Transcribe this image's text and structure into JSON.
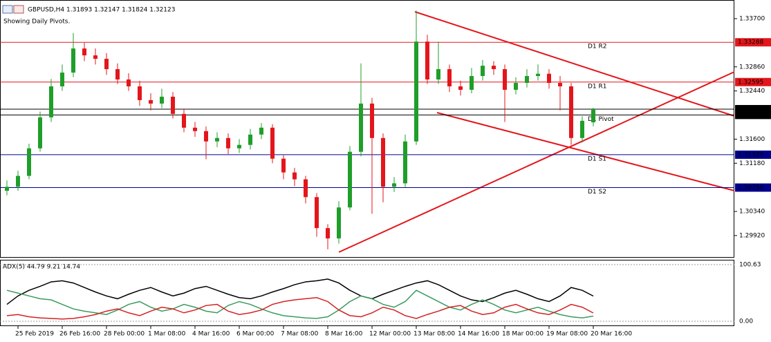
{
  "chart_data": [
    {
      "type": "candlestick",
      "title": "GBPUSD,H4  1.31893 1.32147 1.31824 1.32123",
      "subtitle": "Showing Daily Pivots.",
      "categories": [
        null,
        "25 Feb 2019",
        null,
        null,
        null,
        "26 Feb 16:00",
        null,
        null,
        null,
        "28 Feb 00:00",
        null,
        null,
        null,
        "1 Mar 08:00",
        null,
        null,
        null,
        "4 Mar 16:00",
        null,
        null,
        null,
        "6 Mar 00:00",
        null,
        null,
        null,
        "7 Mar 08:00",
        null,
        null,
        null,
        "8 Mar 16:00",
        null,
        null,
        null,
        "12 Mar 00:00",
        null,
        null,
        null,
        "13 Mar 08:00",
        null,
        null,
        null,
        "14 Mar 16:00",
        null,
        null,
        null,
        "18 Mar 00:00",
        null,
        null,
        null,
        "19 Mar 08:00",
        null,
        null,
        null,
        "20 Mar 16:00"
      ],
      "open": [
        1.307,
        1.3077,
        1.3096,
        1.3144,
        1.3198,
        1.3252,
        1.3276,
        1.3318,
        1.3306,
        1.33,
        1.3282,
        1.3264,
        1.3252,
        1.3228,
        1.3222,
        1.3234,
        1.3204,
        1.318,
        1.3174,
        1.3156,
        1.3162,
        1.3144,
        1.315,
        1.3168,
        1.318,
        1.3126,
        1.3102,
        1.309,
        1.3059,
        1.3005,
        1.2987,
        1.3041,
        1.3138,
        1.3222,
        1.3162,
        1.3077,
        1.3083,
        1.3156,
        1.333,
        1.3264,
        1.3282,
        1.3252,
        1.3246,
        1.327,
        1.3288,
        1.3282,
        1.3246,
        1.3258,
        1.327,
        1.3274,
        1.3258,
        1.3252,
        1.3162,
        1.31893
      ],
      "high": [
        1.3088,
        1.3105,
        1.3152,
        1.3208,
        1.3265,
        1.329,
        1.3345,
        1.3328,
        1.3318,
        1.331,
        1.3292,
        1.3275,
        1.3262,
        1.324,
        1.3248,
        1.3242,
        1.3212,
        1.319,
        1.3182,
        1.3172,
        1.317,
        1.316,
        1.3178,
        1.3188,
        1.3186,
        1.3132,
        1.311,
        1.3096,
        1.3066,
        1.3012,
        1.3052,
        1.3148,
        1.3292,
        1.3232,
        1.317,
        1.3094,
        1.3168,
        1.3384,
        1.3342,
        1.333,
        1.329,
        1.3262,
        1.3284,
        1.3298,
        1.3296,
        1.329,
        1.3268,
        1.3282,
        1.329,
        1.3282,
        1.327,
        1.3258,
        1.32,
        1.32147
      ],
      "low": [
        1.3062,
        1.307,
        1.309,
        1.3138,
        1.319,
        1.3244,
        1.3268,
        1.3296,
        1.329,
        1.3272,
        1.3256,
        1.3244,
        1.3218,
        1.321,
        1.3214,
        1.3196,
        1.3172,
        1.3164,
        1.3125,
        1.3146,
        1.3134,
        1.3136,
        1.3142,
        1.316,
        1.3118,
        1.309,
        1.3078,
        1.3048,
        1.299,
        1.2968,
        1.2978,
        1.3036,
        1.313,
        1.303,
        1.305,
        1.3068,
        1.3076,
        1.315,
        1.3256,
        1.3256,
        1.3242,
        1.3236,
        1.324,
        1.3262,
        1.3272,
        1.319,
        1.3238,
        1.325,
        1.3262,
        1.3248,
        1.321,
        1.315,
        1.3154,
        1.31824
      ],
      "close": [
        1.3077,
        1.3096,
        1.3144,
        1.3198,
        1.3252,
        1.3276,
        1.3318,
        1.3306,
        1.33,
        1.3282,
        1.3264,
        1.3252,
        1.3228,
        1.3222,
        1.3234,
        1.3204,
        1.318,
        1.3174,
        1.3156,
        1.3162,
        1.3144,
        1.315,
        1.3168,
        1.318,
        1.3126,
        1.3102,
        1.309,
        1.3059,
        1.3005,
        1.2987,
        1.3041,
        1.3138,
        1.3222,
        1.3162,
        1.3077,
        1.3083,
        1.3156,
        1.333,
        1.3264,
        1.3282,
        1.3252,
        1.3246,
        1.327,
        1.3288,
        1.3282,
        1.3246,
        1.3258,
        1.327,
        1.3274,
        1.3258,
        1.3252,
        1.3162,
        1.3192,
        1.32123
      ],
      "up_color": "#1f9e2a",
      "down_color": "#e3161b",
      "ylim": [
        1.29546,
        1.34025
      ],
      "yticks": [
        {
          "value": 1.337,
          "label": "1.33700"
        },
        {
          "value": 1.3286,
          "label": "1.32860"
        },
        {
          "value": 1.3244,
          "label": "1.32440"
        },
        {
          "value": 1.316,
          "label": "1.31600"
        },
        {
          "value": 1.3118,
          "label": "1.31180"
        },
        {
          "value": 1.3034,
          "label": "1.30340"
        },
        {
          "value": 1.2992,
          "label": "1.29920"
        }
      ],
      "levels": [
        {
          "name": "D1 R2",
          "value": 1.33288,
          "color": "#e3161b"
        },
        {
          "name": "D1 R1",
          "value": 1.32595,
          "color": "#e3161b"
        },
        {
          "name": "D1 Pivot",
          "value": 1.32022,
          "color": "#000000"
        },
        {
          "name": "D1 S1",
          "value": 1.31329,
          "color": "#00008b"
        },
        {
          "name": "D1 S2",
          "value": 1.30756,
          "color": "#00008b"
        }
      ],
      "current_price": 1.32123,
      "grid": false
    },
    {
      "type": "line",
      "title": "ADX(5) 44.79 9.21 14.74",
      "series": [
        {
          "color": "#000000",
          "values": [
            30,
            45,
            55,
            62,
            70,
            72,
            68,
            60,
            52,
            45,
            40,
            48,
            55,
            60,
            52,
            45,
            50,
            58,
            62,
            55,
            48,
            42,
            40,
            45,
            52,
            58,
            65,
            70,
            72,
            75,
            68,
            55,
            45,
            40,
            48,
            55,
            62,
            68,
            72,
            65,
            55,
            45,
            38,
            35,
            42,
            50,
            55,
            48,
            40,
            35,
            45,
            60,
            55,
            44.79
          ]
        },
        {
          "color": "#3a9a5e",
          "values": [
            55,
            50,
            45,
            40,
            38,
            30,
            22,
            18,
            15,
            12,
            20,
            30,
            35,
            25,
            18,
            22,
            30,
            25,
            18,
            15,
            28,
            35,
            30,
            22,
            15,
            10,
            8,
            6,
            5,
            8,
            20,
            35,
            45,
            40,
            30,
            25,
            35,
            55,
            45,
            35,
            25,
            20,
            30,
            38,
            30,
            20,
            15,
            20,
            25,
            18,
            12,
            8,
            6,
            9.21
          ]
        },
        {
          "color": "#d42020",
          "values": [
            10,
            12,
            8,
            6,
            5,
            4,
            5,
            8,
            12,
            18,
            22,
            15,
            10,
            18,
            25,
            22,
            15,
            20,
            28,
            30,
            18,
            12,
            15,
            20,
            30,
            35,
            38,
            40,
            42,
            35,
            20,
            10,
            8,
            15,
            25,
            20,
            10,
            5,
            12,
            18,
            25,
            28,
            18,
            12,
            15,
            25,
            30,
            22,
            15,
            12,
            20,
            30,
            25,
            14.74
          ]
        }
      ],
      "ylim": [
        -8.59,
        109.22
      ],
      "yticks": [
        100.63,
        {
          "value": 0,
          "label": "0.00"
        }
      ]
    }
  ]
}
